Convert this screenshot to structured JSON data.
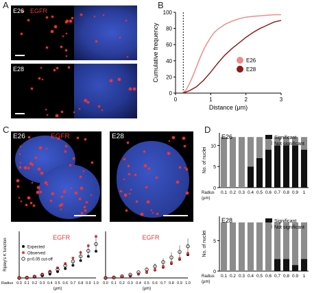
{
  "panel_letters": {
    "a": "A",
    "b": "B",
    "c": "C",
    "d": "D"
  },
  "colors": {
    "egfr_red": "#e8383d",
    "e26_line": "#f08a8a",
    "e28_line": "#8b1b1b",
    "significant": "#111111",
    "not_significant": "#8c8c8c",
    "nucleus_blue": "#2b3f9e"
  },
  "panel_a": {
    "top_label_e": "E26",
    "top_label_marker": "EGFR",
    "bottom_label_e": "E28"
  },
  "panel_c_images": {
    "left_label_e": "E26",
    "left_label_marker": "EGFR",
    "right_label_e": "E28"
  },
  "chart_data": [
    {
      "id": "B",
      "type": "line",
      "xlabel": "Distance (μm)",
      "ylabel": "Cumulative frequency",
      "xlim": [
        0,
        3
      ],
      "ylim": [
        0,
        100
      ],
      "xticks": [
        "0",
        "1",
        "2",
        "3"
      ],
      "yticks": [
        "0",
        "20",
        "40",
        "60",
        "80",
        "100"
      ],
      "cutoff_line_x": 0.22,
      "series": [
        {
          "name": "E26",
          "color": "#f08a8a",
          "x": [
            0.2,
            0.3,
            0.4,
            0.5,
            0.6,
            0.7,
            0.8,
            0.9,
            1.0,
            1.1,
            1.2,
            1.4,
            1.6,
            1.8,
            2.0,
            2.2,
            2.5,
            2.8,
            3.0
          ],
          "y": [
            0,
            4,
            12,
            22,
            33,
            44,
            54,
            62,
            69,
            75,
            79,
            85,
            89,
            92,
            94,
            95,
            96,
            97,
            97
          ]
        },
        {
          "name": "E28",
          "color": "#8b1b1b",
          "x": [
            0.2,
            0.4,
            0.6,
            0.8,
            1.0,
            1.2,
            1.4,
            1.6,
            1.8,
            2.0,
            2.2,
            2.4,
            2.6,
            2.8,
            3.0
          ],
          "y": [
            0,
            3,
            8,
            16,
            26,
            37,
            47,
            55,
            62,
            69,
            75,
            80,
            84,
            88,
            90
          ]
        }
      ],
      "legend": "right"
    },
    {
      "id": "C-left",
      "type": "scatter",
      "title": "EGFR",
      "ylabel": "Ripley's K function",
      "xlabel_left": "Radius",
      "xlabel_unit": "(μm)",
      "xticks": [
        "0.0",
        "0.1",
        "0.2",
        "0.3",
        "0.4",
        "0.5",
        "0.6",
        "0.7",
        "0.8",
        "0.9",
        "1.0"
      ],
      "x": [
        0.0,
        0.1,
        0.2,
        0.3,
        0.4,
        0.5,
        0.6,
        0.7,
        0.8,
        0.9,
        1.0
      ],
      "ylim": [
        0,
        5.5
      ],
      "series": [
        {
          "name": "Expected",
          "marker": "filled-black",
          "values": [
            0.0,
            0.02,
            0.1,
            0.25,
            0.45,
            0.75,
            1.1,
            1.5,
            2.05,
            2.55,
            3.15
          ]
        },
        {
          "name": "Observed",
          "marker": "red",
          "values": [
            0.0,
            0.05,
            0.2,
            0.45,
            0.8,
            1.2,
            1.7,
            2.35,
            3.0,
            3.8,
            4.9
          ]
        },
        {
          "name": "p=0.05 cut-off",
          "marker": "open-circle",
          "values": [
            0.0,
            0.03,
            0.15,
            0.35,
            0.65,
            1.0,
            1.45,
            1.95,
            2.55,
            3.2,
            4.0
          ]
        }
      ],
      "legend": "top-left"
    },
    {
      "id": "C-right",
      "type": "scatter",
      "title": "EGFR",
      "x": [
        0.0,
        0.1,
        0.2,
        0.3,
        0.4,
        0.5,
        0.6,
        0.7,
        0.8,
        0.9,
        1.0
      ],
      "xticks": [
        "0.0",
        "0.1",
        "0.2",
        "0.3",
        "0.4",
        "0.5",
        "0.6",
        "0.7",
        "0.8",
        "0.9",
        "1.0"
      ],
      "xlabel_unit": "(μm)",
      "ylim": [
        0,
        10
      ],
      "series": [
        {
          "name": "Expected",
          "marker": "filled-black",
          "values": [
            0.0,
            0.05,
            0.2,
            0.4,
            0.8,
            1.2,
            1.7,
            2.3,
            3.1,
            4.0,
            5.0
          ]
        },
        {
          "name": "Observed",
          "marker": "red",
          "values": [
            0.0,
            0.05,
            0.25,
            0.5,
            0.9,
            1.3,
            1.8,
            2.5,
            3.3,
            4.2,
            5.3
          ]
        },
        {
          "name": "p=0.05 cut-off",
          "marker": "open-circle",
          "values": [
            0.0,
            0.1,
            0.35,
            0.7,
            1.2,
            1.8,
            2.5,
            3.4,
            4.4,
            5.6,
            6.8
          ]
        }
      ]
    },
    {
      "id": "D-top",
      "type": "bar",
      "stacked": true,
      "label": "E26",
      "ylabel": "No. of nuclei",
      "xlabel_left": "Radius",
      "xlabel_unit": "(μm)",
      "categories": [
        "0.1",
        "0.2",
        "0.3",
        "0.4",
        "0.5",
        "0.6",
        "0.7",
        "0.8",
        "0.9",
        "1"
      ],
      "yticks": [
        "0",
        "5",
        "10"
      ],
      "ylim": [
        0,
        13
      ],
      "series": [
        {
          "name": "Significant",
          "color": "#111111",
          "values": [
            0,
            0,
            0,
            5,
            7,
            9,
            10,
            10,
            10,
            9
          ]
        },
        {
          "name": "Not significant",
          "color": "#8c8c8c",
          "values": [
            12,
            12,
            12,
            7,
            5,
            3,
            2,
            2,
            2,
            3
          ]
        }
      ],
      "legend": "top-right"
    },
    {
      "id": "D-bottom",
      "type": "bar",
      "stacked": true,
      "label": "E28",
      "ylabel": "No. of nuclei",
      "xlabel_left": "Radius",
      "xlabel_unit": "(μm)",
      "categories": [
        "0.1",
        "0.2",
        "0.3",
        "0.4",
        "0.5",
        "0.6",
        "0.7",
        "0.8",
        "0.9",
        "1"
      ],
      "yticks": [
        "0",
        "5"
      ],
      "ylim": [
        0,
        9
      ],
      "series": [
        {
          "name": "Significant",
          "color": "#111111",
          "values": [
            0,
            0,
            0,
            0,
            0,
            0,
            2,
            2,
            1,
            2
          ]
        },
        {
          "name": "Not significant",
          "color": "#8c8c8c",
          "values": [
            8,
            8,
            8,
            8,
            8,
            8,
            6,
            6,
            7,
            6
          ]
        }
      ],
      "legend": "top-right"
    }
  ]
}
